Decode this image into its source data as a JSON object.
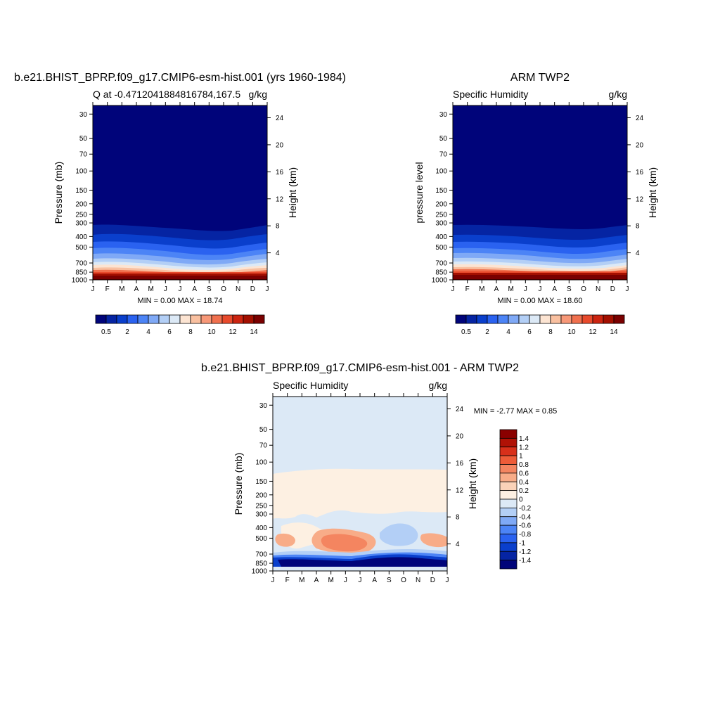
{
  "panel1": {
    "main_title": "b.e21.BHIST_BPRP.f09_g17.CMIP6-esm-hist.001 (yrs 1960-1984)",
    "left_string": "Q at -0.4712041884816784,167.5",
    "right_string": "g/kg",
    "ylabel_left": "Pressure (mb)",
    "ylabel_right": "Height (km)",
    "minmax": "MIN =   0.00 MAX =  18.74"
  },
  "panel2": {
    "main_title": "ARM TWP2",
    "left_string": "Specific Humidity",
    "right_string": "g/kg",
    "ylabel_left": "pressure level",
    "ylabel_right": "Height (km)",
    "minmax": "MIN =   0.00 MAX =  18.60"
  },
  "panel3": {
    "main_title": "b.e21.BHIST_BPRP.f09_g17.CMIP6-esm-hist.001 - ARM TWP2",
    "left_string": "Specific Humidity",
    "right_string": "g/kg",
    "ylabel_left": "Pressure (mb)",
    "ylabel_right": "Height (km)",
    "minmax": "MIN =  -2.77 MAX =   0.85"
  },
  "chart_data": [
    {
      "type": "heatmap",
      "title": "b.e21.BHIST_BPRP.f09_g17.CMIP6-esm-hist.001 (yrs 1960-1984)",
      "subtitle": "Q at -0.4712041884816784,167.5",
      "units": "g/kg",
      "xlabel": "",
      "ylabel": "Pressure (mb)",
      "ylabel_right": "Height (km)",
      "x_ticks": [
        "J",
        "F",
        "M",
        "A",
        "M",
        "J",
        "J",
        "A",
        "S",
        "O",
        "N",
        "D",
        "J"
      ],
      "y_ticks": [
        30,
        50,
        70,
        100,
        150,
        200,
        250,
        300,
        400,
        500,
        700,
        850,
        1000
      ],
      "y_right_ticks": [
        4,
        8,
        12,
        16,
        20,
        24
      ],
      "ylim": [
        1000,
        25
      ],
      "y_scale": "log",
      "colorbar": {
        "orientation": "horizontal",
        "levels": [
          0.5,
          1,
          2,
          3,
          4,
          5,
          6,
          7,
          8,
          9,
          10,
          11,
          12,
          13,
          14
        ],
        "labels": [
          "0.5",
          "2",
          "4",
          "6",
          "8",
          "10",
          "12",
          "14"
        ],
        "colors": [
          "#00047a",
          "#0524a3",
          "#0a3fcc",
          "#2a62f0",
          "#4c84f6",
          "#7fa9f6",
          "#b3cff6",
          "#dce9f6",
          "#fce4d2",
          "#f9c0a0",
          "#f79878",
          "#f0704e",
          "#e84a2c",
          "#cc2410",
          "#a30f00",
          "#7a0000"
        ]
      },
      "min": 0.0,
      "max": 18.74
    },
    {
      "type": "heatmap",
      "title": "ARM TWP2",
      "subtitle": "Specific Humidity",
      "units": "g/kg",
      "xlabel": "",
      "ylabel": "pressure level",
      "ylabel_right": "Height (km)",
      "x_ticks": [
        "J",
        "F",
        "M",
        "A",
        "M",
        "J",
        "J",
        "A",
        "S",
        "O",
        "N",
        "D",
        "J"
      ],
      "y_ticks": [
        30,
        50,
        70,
        100,
        150,
        200,
        250,
        300,
        400,
        500,
        700,
        850,
        1000
      ],
      "y_right_ticks": [
        4,
        8,
        12,
        16,
        20,
        24
      ],
      "ylim": [
        1000,
        25
      ],
      "y_scale": "log",
      "colorbar": {
        "orientation": "horizontal",
        "levels": [
          0.5,
          1,
          2,
          3,
          4,
          5,
          6,
          7,
          8,
          9,
          10,
          11,
          12,
          13,
          14
        ],
        "labels": [
          "0.5",
          "2",
          "4",
          "6",
          "8",
          "10",
          "12",
          "14"
        ],
        "colors": [
          "#00047a",
          "#0524a3",
          "#0a3fcc",
          "#2a62f0",
          "#4c84f6",
          "#7fa9f6",
          "#b3cff6",
          "#dce9f6",
          "#fce4d2",
          "#f9c0a0",
          "#f79878",
          "#f0704e",
          "#e84a2c",
          "#cc2410",
          "#a30f00",
          "#7a0000"
        ]
      },
      "min": 0.0,
      "max": 18.6
    },
    {
      "type": "heatmap",
      "title": "b.e21.BHIST_BPRP.f09_g17.CMIP6-esm-hist.001 - ARM TWP2",
      "subtitle": "Specific Humidity",
      "units": "g/kg",
      "xlabel": "",
      "ylabel": "Pressure (mb)",
      "ylabel_right": "Height (km)",
      "x_ticks": [
        "J",
        "F",
        "M",
        "A",
        "M",
        "J",
        "J",
        "A",
        "S",
        "O",
        "N",
        "D",
        "J"
      ],
      "y_ticks": [
        30,
        50,
        70,
        100,
        150,
        200,
        250,
        300,
        400,
        500,
        700,
        850,
        1000
      ],
      "y_right_ticks": [
        4,
        8,
        12,
        16,
        20,
        24
      ],
      "ylim": [
        1000,
        25
      ],
      "y_scale": "log",
      "colorbar": {
        "orientation": "vertical",
        "levels": [
          -1.4,
          -1.2,
          -1,
          -0.8,
          -0.6,
          -0.4,
          -0.2,
          0,
          0.2,
          0.4,
          0.6,
          0.8,
          1,
          1.2,
          1.4
        ],
        "labels": [
          "1.4",
          "1.2",
          "1",
          "0.8",
          "0.6",
          "0.4",
          "0.2",
          "0",
          "-0.2",
          "-0.4",
          "-0.6",
          "-0.8",
          "-1",
          "-1.2",
          "-1.4"
        ],
        "colors": [
          "#00047a",
          "#0524a3",
          "#0a3fcc",
          "#2a62f0",
          "#4c84f6",
          "#7fa9f6",
          "#b3cff6",
          "#dce9f6",
          "#fdf0e2",
          "#fad2b8",
          "#f8ac88",
          "#f48560",
          "#ee5c38",
          "#d8301a",
          "#b01206",
          "#8a0000"
        ]
      },
      "min": -2.77,
      "max": 0.85
    }
  ]
}
